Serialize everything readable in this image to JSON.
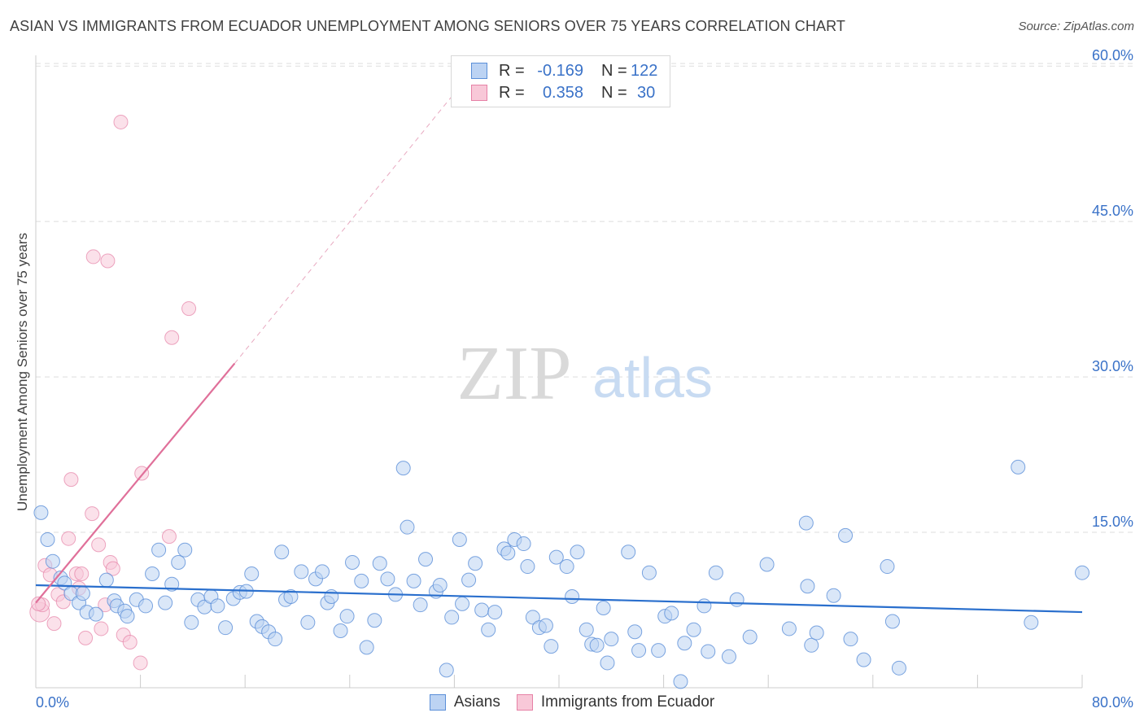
{
  "title": "ASIAN VS IMMIGRANTS FROM ECUADOR UNEMPLOYMENT AMONG SENIORS OVER 75 YEARS CORRELATION CHART",
  "source": "Source: ZipAtlas.com",
  "watermark": {
    "zip": "ZIP",
    "atlas": "atlas"
  },
  "legend_top": [
    {
      "r_label": "R =",
      "r_value": "-0.169",
      "n_label": "N =",
      "n_value": "122",
      "color": "blue"
    },
    {
      "r_label": "R =",
      "r_value": "0.358",
      "n_label": "N =",
      "n_value": "30",
      "color": "pink"
    }
  ],
  "legend_bottom": [
    {
      "label": "Asians",
      "color": "blue"
    },
    {
      "label": "Immigrants from Ecuador",
      "color": "pink"
    }
  ],
  "colors": {
    "blue_fill": "#bcd3f3",
    "blue_stroke": "#5b8fd8",
    "blue_line": "#2a6fcd",
    "pink_fill": "#f8c8d8",
    "pink_stroke": "#e681a6",
    "pink_line": "#e0709a",
    "tick_text": "#3a72c8",
    "grid": "#dddddd"
  },
  "chart_data": {
    "type": "scatter",
    "title": "ASIAN VS IMMIGRANTS FROM ECUADOR UNEMPLOYMENT AMONG SENIORS OVER 75 YEARS CORRELATION CHART",
    "xlabel": "",
    "ylabel": "Unemployment Among Seniors over 75 years",
    "xlim": [
      0,
      80
    ],
    "ylim": [
      0,
      63
    ],
    "x_tick_labels": [
      {
        "value": 0,
        "label": "0.0%"
      },
      {
        "value": 80,
        "label": "80.0%"
      }
    ],
    "y_tick_labels": [
      {
        "value": 15,
        "label": "15.0%"
      },
      {
        "value": 30,
        "label": "30.0%"
      },
      {
        "value": 45,
        "label": "45.0%"
      },
      {
        "value": 60,
        "label": "60.0%"
      }
    ],
    "grid": true,
    "series": [
      {
        "name": "Asians",
        "color": "blue",
        "trendline": {
          "x": [
            0,
            80
          ],
          "y": [
            9.9,
            7.3
          ]
        },
        "points": [
          [
            0.4,
            16.9
          ],
          [
            0.9,
            14.3
          ],
          [
            1.3,
            12.2
          ],
          [
            1.9,
            10.6
          ],
          [
            2.2,
            10.1
          ],
          [
            2.7,
            9.1
          ],
          [
            3.3,
            8.2
          ],
          [
            3.6,
            9.1
          ],
          [
            3.9,
            7.3
          ],
          [
            4.6,
            7.1
          ],
          [
            5.4,
            10.4
          ],
          [
            6.0,
            8.4
          ],
          [
            6.2,
            7.9
          ],
          [
            6.8,
            7.4
          ],
          [
            7.0,
            6.9
          ],
          [
            7.7,
            8.5
          ],
          [
            8.4,
            7.9
          ],
          [
            8.9,
            11.0
          ],
          [
            9.4,
            13.3
          ],
          [
            9.9,
            8.2
          ],
          [
            10.4,
            10.0
          ],
          [
            10.9,
            12.1
          ],
          [
            11.4,
            13.3
          ],
          [
            11.9,
            6.3
          ],
          [
            12.4,
            8.5
          ],
          [
            12.9,
            7.8
          ],
          [
            13.4,
            8.8
          ],
          [
            13.9,
            7.9
          ],
          [
            14.5,
            5.8
          ],
          [
            15.1,
            8.6
          ],
          [
            15.6,
            9.2
          ],
          [
            16.1,
            9.3
          ],
          [
            16.5,
            11.0
          ],
          [
            16.9,
            6.4
          ],
          [
            17.3,
            5.9
          ],
          [
            17.8,
            5.4
          ],
          [
            18.3,
            4.7
          ],
          [
            18.8,
            13.1
          ],
          [
            19.1,
            8.5
          ],
          [
            19.5,
            8.8
          ],
          [
            20.3,
            11.2
          ],
          [
            20.8,
            6.3
          ],
          [
            21.4,
            10.5
          ],
          [
            21.9,
            11.2
          ],
          [
            22.3,
            8.2
          ],
          [
            22.6,
            8.8
          ],
          [
            23.3,
            5.5
          ],
          [
            23.8,
            6.9
          ],
          [
            24.2,
            12.1
          ],
          [
            24.9,
            10.3
          ],
          [
            25.3,
            3.9
          ],
          [
            25.9,
            6.5
          ],
          [
            26.3,
            12.0
          ],
          [
            26.9,
            10.5
          ],
          [
            27.5,
            9.0
          ],
          [
            28.1,
            21.2
          ],
          [
            28.4,
            15.5
          ],
          [
            28.9,
            10.3
          ],
          [
            29.4,
            8.0
          ],
          [
            29.8,
            12.4
          ],
          [
            30.6,
            9.3
          ],
          [
            30.9,
            9.9
          ],
          [
            31.4,
            1.7
          ],
          [
            31.8,
            6.8
          ],
          [
            32.4,
            14.3
          ],
          [
            32.6,
            8.1
          ],
          [
            33.1,
            10.4
          ],
          [
            33.6,
            12.0
          ],
          [
            34.1,
            7.5
          ],
          [
            34.6,
            5.6
          ],
          [
            35.1,
            7.3
          ],
          [
            35.8,
            13.4
          ],
          [
            36.1,
            13.0
          ],
          [
            36.6,
            14.3
          ],
          [
            37.3,
            13.9
          ],
          [
            37.6,
            11.7
          ],
          [
            38.0,
            6.8
          ],
          [
            38.5,
            5.8
          ],
          [
            39.0,
            6.0
          ],
          [
            39.4,
            4.0
          ],
          [
            39.8,
            12.6
          ],
          [
            40.6,
            11.7
          ],
          [
            41.0,
            8.8
          ],
          [
            41.4,
            13.1
          ],
          [
            42.1,
            5.6
          ],
          [
            42.5,
            4.2
          ],
          [
            42.9,
            4.1
          ],
          [
            43.4,
            7.7
          ],
          [
            43.7,
            2.4
          ],
          [
            44.0,
            4.7
          ],
          [
            45.3,
            13.1
          ],
          [
            45.8,
            5.4
          ],
          [
            46.1,
            3.6
          ],
          [
            46.9,
            11.1
          ],
          [
            47.6,
            3.6
          ],
          [
            48.1,
            6.9
          ],
          [
            48.6,
            7.2
          ],
          [
            49.3,
            0.6
          ],
          [
            49.6,
            4.3
          ],
          [
            50.3,
            5.6
          ],
          [
            51.1,
            7.9
          ],
          [
            51.4,
            3.5
          ],
          [
            52.0,
            11.1
          ],
          [
            53.0,
            3.0
          ],
          [
            53.6,
            8.5
          ],
          [
            54.6,
            4.9
          ],
          [
            55.9,
            11.9
          ],
          [
            57.6,
            5.7
          ],
          [
            58.9,
            15.9
          ],
          [
            59.3,
            4.1
          ],
          [
            59.7,
            5.3
          ],
          [
            59.0,
            9.8
          ],
          [
            61.0,
            8.9
          ],
          [
            61.9,
            14.7
          ],
          [
            62.3,
            4.7
          ],
          [
            63.3,
            2.7
          ],
          [
            65.1,
            11.7
          ],
          [
            65.5,
            6.4
          ],
          [
            66.0,
            1.9
          ],
          [
            76.1,
            6.3
          ],
          [
            75.1,
            21.3
          ],
          [
            80.0,
            11.1
          ]
        ]
      },
      {
        "name": "Immigrants from Ecuador",
        "color": "pink",
        "trendline": {
          "x": [
            0,
            15.2
          ],
          "y": [
            8.2,
            31.3
          ],
          "dashed_extension": {
            "x": [
              15.2,
              32.4
            ],
            "y": [
              31.3,
              58.0
            ]
          }
        },
        "points": [
          [
            0.3,
            7.3
          ],
          [
            0.5,
            8.0
          ],
          [
            0.7,
            11.8
          ],
          [
            1.1,
            10.9
          ],
          [
            1.4,
            6.2
          ],
          [
            1.7,
            9.0
          ],
          [
            2.1,
            8.3
          ],
          [
            2.5,
            14.4
          ],
          [
            2.7,
            20.1
          ],
          [
            3.1,
            11.0
          ],
          [
            3.3,
            9.6
          ],
          [
            3.5,
            11.0
          ],
          [
            3.8,
            4.8
          ],
          [
            4.3,
            16.8
          ],
          [
            4.4,
            41.6
          ],
          [
            4.8,
            13.8
          ],
          [
            5.0,
            5.7
          ],
          [
            5.3,
            8.0
          ],
          [
            5.5,
            41.2
          ],
          [
            5.7,
            12.1
          ],
          [
            5.9,
            11.5
          ],
          [
            6.5,
            54.6
          ],
          [
            6.7,
            5.1
          ],
          [
            7.2,
            4.4
          ],
          [
            8.0,
            2.4
          ],
          [
            8.1,
            20.7
          ],
          [
            10.2,
            14.6
          ],
          [
            10.4,
            33.8
          ],
          [
            11.7,
            36.6
          ],
          [
            0.2,
            8.1
          ]
        ]
      }
    ]
  }
}
